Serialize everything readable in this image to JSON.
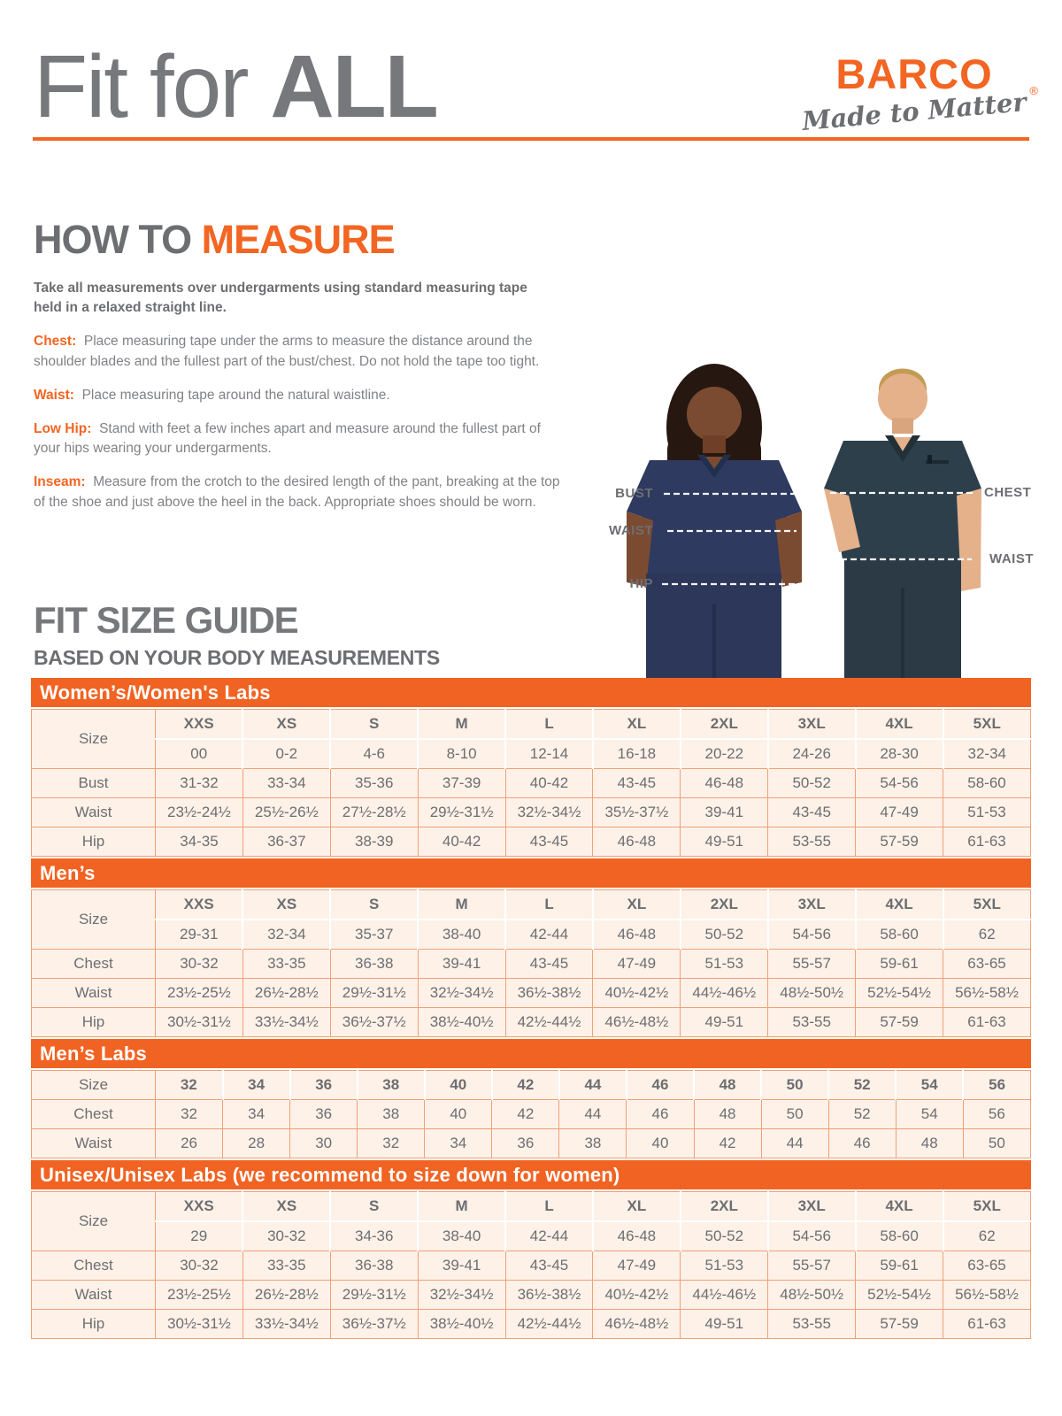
{
  "header": {
    "title_light": "Fit for ",
    "title_bold": "ALL"
  },
  "brand": {
    "name": "BARCO",
    "registered": "®",
    "tagline": "Made to Matter"
  },
  "how_to_measure": {
    "heading_prefix": "HOW TO ",
    "heading_accent": "MEASURE",
    "intro": "Take all measurements over undergarments using standard measuring tape held in a relaxed straight line.",
    "steps": [
      {
        "label": "Chest:",
        "text": "Place measuring tape under the arms to measure the distance around the shoulder blades and the fullest part of the bust/chest. Do not hold the tape too tight."
      },
      {
        "label": "Waist:",
        "text": "Place measuring tape around the natural waistline."
      },
      {
        "label": "Low Hip:",
        "text": "Stand with feet a few inches apart and measure around the fullest part of your hips wearing your undergarments."
      },
      {
        "label": "Inseam:",
        "text": "Measure from the crotch to the desired length of the pant, breaking at the top of the shoe and just above the heel in the back. Appropriate shoes should be worn."
      }
    ]
  },
  "figure": {
    "female_labels": [
      "BUST",
      "WAIST",
      "HIP"
    ],
    "male_labels": [
      "CHEST",
      "WAIST"
    ]
  },
  "size_guide": {
    "heading": "FIT SIZE GUIDE",
    "subheading": "BASED ON YOUR BODY MEASUREMENTS",
    "tables": [
      {
        "title": "Women’s/Women's Labs",
        "size_label": "Size",
        "sizes": [
          "XXS",
          "XS",
          "S",
          "M",
          "L",
          "XL",
          "2XL",
          "3XL",
          "4XL",
          "5XL"
        ],
        "numeric_sizes": [
          "00",
          "0-2",
          "4-6",
          "8-10",
          "12-14",
          "16-18",
          "20-22",
          "24-26",
          "28-30",
          "32-34"
        ],
        "rows": [
          {
            "label": "Bust",
            "values": [
              "31-32",
              "33-34",
              "35-36",
              "37-39",
              "40-42",
              "43-45",
              "46-48",
              "50-52",
              "54-56",
              "58-60"
            ]
          },
          {
            "label": "Waist",
            "values": [
              "23½-24½",
              "25½-26½",
              "27½-28½",
              "29½-31½",
              "32½-34½",
              "35½-37½",
              "39-41",
              "43-45",
              "47-49",
              "51-53"
            ]
          },
          {
            "label": "Hip",
            "values": [
              "34-35",
              "36-37",
              "38-39",
              "40-42",
              "43-45",
              "46-48",
              "49-51",
              "53-55",
              "57-59",
              "61-63"
            ]
          }
        ]
      },
      {
        "title": "Men’s",
        "size_label": "Size",
        "sizes": [
          "XXS",
          "XS",
          "S",
          "M",
          "L",
          "XL",
          "2XL",
          "3XL",
          "4XL",
          "5XL"
        ],
        "numeric_sizes": [
          "29-31",
          "32-34",
          "35-37",
          "38-40",
          "42-44",
          "46-48",
          "50-52",
          "54-56",
          "58-60",
          "62"
        ],
        "rows": [
          {
            "label": "Chest",
            "values": [
              "30-32",
              "33-35",
              "36-38",
              "39-41",
              "43-45",
              "47-49",
              "51-53",
              "55-57",
              "59-61",
              "63-65"
            ]
          },
          {
            "label": "Waist",
            "values": [
              "23½-25½",
              "26½-28½",
              "29½-31½",
              "32½-34½",
              "36½-38½",
              "40½-42½",
              "44½-46½",
              "48½-50½",
              "52½-54½",
              "56½-58½"
            ]
          },
          {
            "label": "Hip",
            "values": [
              "30½-31½",
              "33½-34½",
              "36½-37½",
              "38½-40½",
              "42½-44½",
              "46½-48½",
              "49-51",
              "53-55",
              "57-59",
              "61-63"
            ]
          }
        ]
      },
      {
        "title": "Men’s Labs",
        "size_label": "Size",
        "sizes": [
          "32",
          "34",
          "36",
          "38",
          "40",
          "42",
          "44",
          "46",
          "48",
          "50",
          "52",
          "54",
          "56"
        ],
        "numeric_sizes": null,
        "rows": [
          {
            "label": "Chest",
            "values": [
              "32",
              "34",
              "36",
              "38",
              "40",
              "42",
              "44",
              "46",
              "48",
              "50",
              "52",
              "54",
              "56"
            ]
          },
          {
            "label": "Waist",
            "values": [
              "26",
              "28",
              "30",
              "32",
              "34",
              "36",
              "38",
              "40",
              "42",
              "44",
              "46",
              "48",
              "50"
            ]
          }
        ]
      },
      {
        "title": "Unisex/Unisex Labs (we recommend to size down for women)",
        "size_label": "Size",
        "sizes": [
          "XXS",
          "XS",
          "S",
          "M",
          "L",
          "XL",
          "2XL",
          "3XL",
          "4XL",
          "5XL"
        ],
        "numeric_sizes": [
          "29",
          "30-32",
          "34-36",
          "38-40",
          "42-44",
          "46-48",
          "50-52",
          "54-56",
          "58-60",
          "62"
        ],
        "rows": [
          {
            "label": "Chest",
            "values": [
              "30-32",
              "33-35",
              "36-38",
              "39-41",
              "43-45",
              "47-49",
              "51-53",
              "55-57",
              "59-61",
              "63-65"
            ]
          },
          {
            "label": "Waist",
            "values": [
              "23½-25½",
              "26½-28½",
              "29½-31½",
              "32½-34½",
              "36½-38½",
              "40½-42½",
              "44½-46½",
              "48½-50½",
              "52½-54½",
              "56½-58½"
            ]
          },
          {
            "label": "Hip",
            "values": [
              "30½-31½",
              "33½-34½",
              "36½-37½",
              "38½-40½",
              "42½-44½",
              "46½-48½",
              "49-51",
              "53-55",
              "57-59",
              "61-63"
            ]
          }
        ]
      }
    ]
  },
  "colors": {
    "accent_orange": "#f26522",
    "banner_orange": "#f16322",
    "title_gray": "#77787b",
    "text_gray": "#6d6e71",
    "body_gray": "#808285",
    "table_border": "#f0a077",
    "header_cell_bg": "#fbddc3",
    "numeric_cell_bg": "#fceadb",
    "data_cell_bg": "#fdf1e8",
    "female_scrub_navy": "#2e3a5f",
    "male_scrub_slate": "#2d3f4b"
  }
}
